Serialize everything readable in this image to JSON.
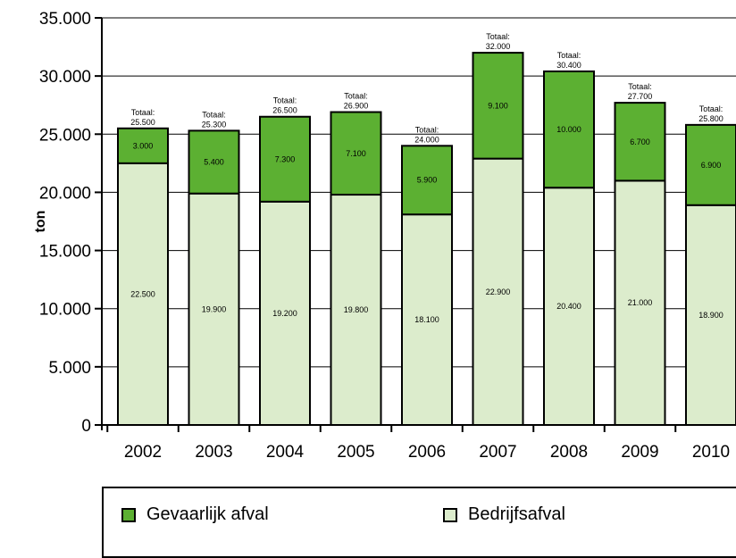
{
  "chart_data": {
    "type": "bar",
    "stacked": true,
    "categories": [
      "2002",
      "2003",
      "2004",
      "2005",
      "2006",
      "2007",
      "2008",
      "2009",
      "2010"
    ],
    "series": [
      {
        "name": "Bedrijfsafval",
        "color": "#dceccc",
        "values": [
          22500,
          19900,
          19200,
          19800,
          18100,
          22900,
          20400,
          21000,
          18900
        ],
        "labels": [
          "22.500",
          "19.900",
          "19.200",
          "19.800",
          "18.100",
          "22.900",
          "20.400",
          "21.000",
          "18.900"
        ]
      },
      {
        "name": "Gevaarlijk afval",
        "color": "#5cb032",
        "values": [
          3000,
          5400,
          7300,
          7100,
          5900,
          9100,
          10000,
          6700,
          6900
        ],
        "labels": [
          "3.000",
          "5.400",
          "7.300",
          "7.100",
          "5.900",
          "9.100",
          "10.000",
          "6.700",
          "6.900"
        ]
      }
    ],
    "totals": [
      "Totaal:\n25.500",
      "Totaal:\n25.300",
      "Totaal:\n26.500",
      "Totaal:\n26.900",
      "Totaal:\n24.000",
      "Totaal:\n32.000",
      "Totaal:\n30.400",
      "Totaal:\n27.700",
      "Totaal:\n25.800"
    ],
    "ylabel": "ton",
    "ylim": [
      0,
      35000
    ],
    "yticks": [
      0,
      5000,
      10000,
      15000,
      20000,
      25000,
      30000,
      35000
    ],
    "yticklabels": [
      "0",
      "5.000",
      "10.000",
      "15.000",
      "20.000",
      "25.000",
      "30.000",
      "35.000"
    ],
    "grid": true,
    "legend_position": "bottom"
  },
  "legend": {
    "item1": "Gevaarlijk afval",
    "item2": "Bedrijfsafval"
  }
}
